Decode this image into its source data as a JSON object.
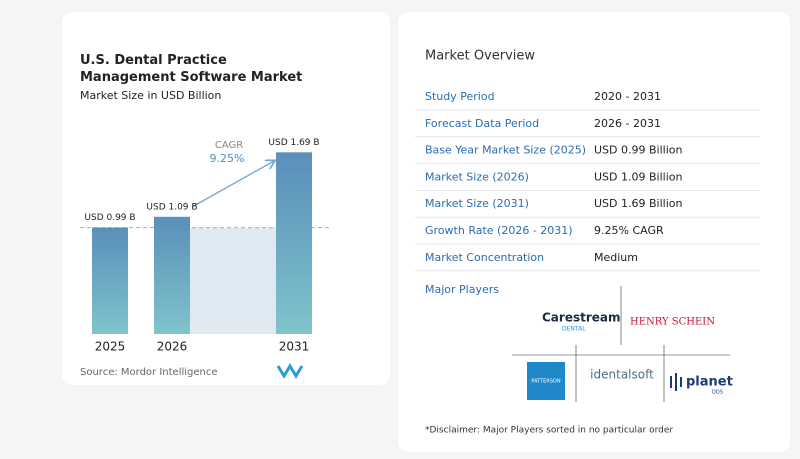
{
  "chart_data": {
    "type": "bar",
    "title": "U.S. Dental Practice Management Software Market",
    "subtitle": "Market Size in USD Billion",
    "categories": [
      "2025",
      "2026",
      "2031"
    ],
    "values": [
      0.99,
      1.09,
      1.69
    ],
    "value_labels": [
      "USD 0.99 B",
      "USD 1.09 B",
      "USD 1.69 B"
    ],
    "color": "#5a8fba",
    "ylim": [
      0,
      2
    ],
    "annotation": {
      "label": "CAGR",
      "value": "9.25%"
    },
    "source": "Source: Mordor Intelligence"
  },
  "overview": {
    "title": "Market Overview",
    "rows": [
      [
        "Study Period",
        "2020 - 2031"
      ],
      [
        "Forecast Data Period",
        "2026 - 2031"
      ],
      [
        "Base Year Market Size (2025)",
        "USD 0.99 Billion"
      ],
      [
        "Market Size (2026)",
        "USD 1.09 Billion"
      ],
      [
        "Market Size (2031)",
        "USD 1.69 Billion"
      ],
      [
        "Growth Rate (2026 - 2031)",
        "9.25% CAGR"
      ],
      [
        "Market Concentration",
        "Medium"
      ]
    ]
  },
  "major_players": {
    "title": "Major Players",
    "players": [
      "Carestream",
      "DENTAL",
      "HENRY SCHEIN",
      "PATTERSON",
      "identalsoft",
      "planet",
      "DDS"
    ]
  },
  "disclaimer": "*Disclaimer: Major Players sorted in no particular order"
}
